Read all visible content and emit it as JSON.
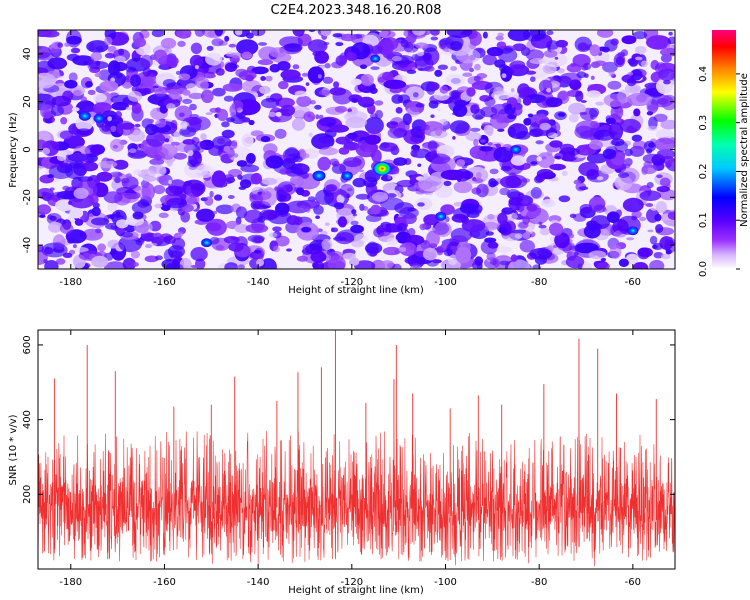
{
  "title": "C2E4.2023.348.16.20.R08",
  "chart_data": [
    {
      "type": "heatmap",
      "xlabel": "Height of straight line (km)",
      "ylabel": "Frequency (Hz)",
      "xlim": [
        -187,
        -51
      ],
      "ylim": [
        -50,
        50
      ],
      "xticks": [
        -180,
        -160,
        -140,
        -120,
        -100,
        -80,
        -60
      ],
      "yticks": [
        -40,
        -20,
        0,
        20,
        40
      ],
      "colorbar": {
        "label": "Normalized spectral amplitude",
        "range": [
          0,
          0.49
        ],
        "ticks": [
          0.0,
          0.1,
          0.2,
          0.3,
          0.4
        ],
        "tick_labels": [
          "0.0",
          "0.1",
          "0.2",
          "0.3",
          "0.4"
        ],
        "colors": [
          "#ffffff",
          "#9b30ff",
          "#5a00ff",
          "#0000ff",
          "#00ffff",
          "#00ff00",
          "#ffff00",
          "#ff8000",
          "#ff0000",
          "#ff0080"
        ]
      },
      "peak": {
        "x": -113.5,
        "y": -8,
        "value": 0.42
      },
      "secondary_peaks": [
        {
          "x": -177,
          "y": 14,
          "value": 0.12
        },
        {
          "x": -174,
          "y": 13,
          "value": 0.1
        },
        {
          "x": -151,
          "y": -39,
          "value": 0.1
        },
        {
          "x": -127,
          "y": -11,
          "value": 0.14
        },
        {
          "x": -121,
          "y": -11,
          "value": 0.11
        },
        {
          "x": -85,
          "y": 0,
          "value": 0.1
        },
        {
          "x": -60,
          "y": -34,
          "value": 0.1
        },
        {
          "x": -115,
          "y": 38,
          "value": 0.08
        },
        {
          "x": -101,
          "y": -28,
          "value": 0.1
        }
      ],
      "background_level": 0.03
    },
    {
      "type": "line",
      "xlabel": "Height of straight line (km)",
      "ylabel": "SNR (10 * v/v)",
      "xlim": [
        -187,
        -51
      ],
      "ylim": [
        0,
        640
      ],
      "xticks": [
        -180,
        -160,
        -140,
        -120,
        -100,
        -80,
        -60
      ],
      "yticks": [
        200,
        400,
        600
      ],
      "series_color": "#f03030",
      "baseline_mean": 165,
      "noise_band": [
        60,
        280
      ],
      "spikes": [
        {
          "x": -123.5,
          "y": 640
        },
        {
          "x": -71.5,
          "y": 617
        },
        {
          "x": -110.5,
          "y": 600
        },
        {
          "x": -176.5,
          "y": 600
        },
        {
          "x": -67.5,
          "y": 590
        },
        {
          "x": -126.5,
          "y": 540
        },
        {
          "x": -170.5,
          "y": 530
        },
        {
          "x": -131.5,
          "y": 527
        },
        {
          "x": -145,
          "y": 515
        },
        {
          "x": -183.5,
          "y": 510
        },
        {
          "x": -111,
          "y": 508
        },
        {
          "x": -79,
          "y": 495
        },
        {
          "x": -107,
          "y": 470
        },
        {
          "x": -93,
          "y": 465
        },
        {
          "x": -63.5,
          "y": 470
        },
        {
          "x": -55,
          "y": 455
        },
        {
          "x": -150,
          "y": 440
        },
        {
          "x": -158,
          "y": 435
        },
        {
          "x": -99,
          "y": 430
        },
        {
          "x": -136,
          "y": 450
        },
        {
          "x": -88,
          "y": 440
        },
        {
          "x": -117,
          "y": 445
        }
      ]
    }
  ]
}
